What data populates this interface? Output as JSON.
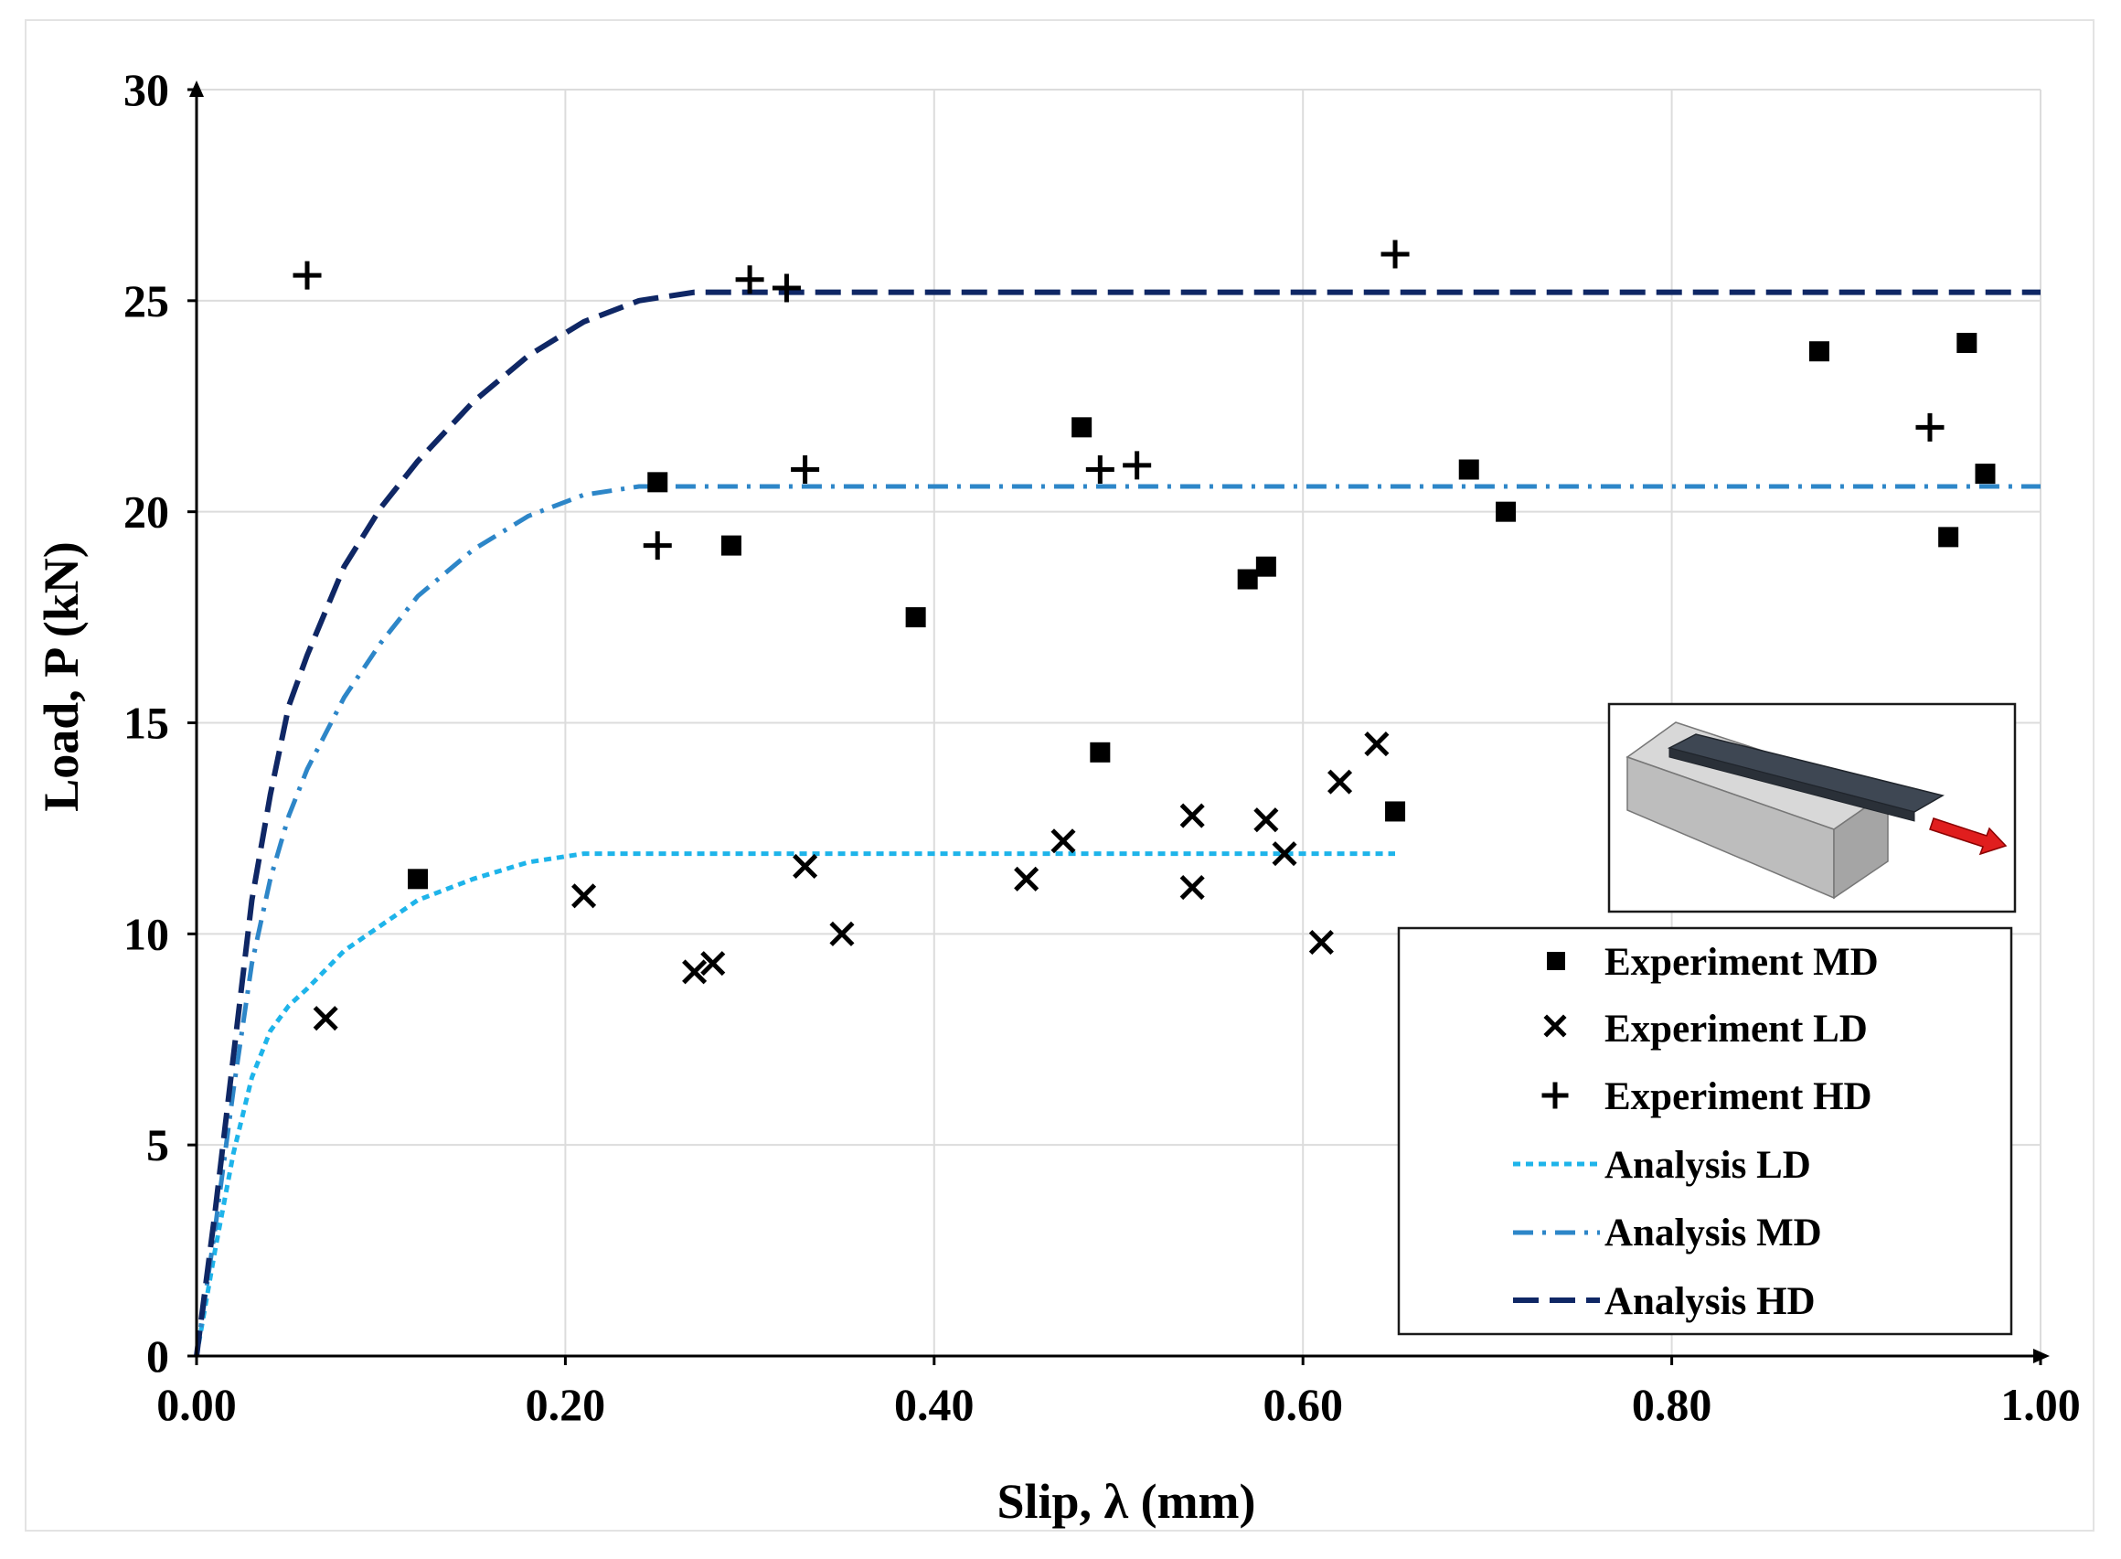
{
  "chart_data": {
    "type": "scatter",
    "xlabel": "Slip, λ (mm)",
    "ylabel": "Load, P (kN)",
    "xlim": [
      0,
      1.0
    ],
    "ylim": [
      0,
      30
    ],
    "xticks": [
      0,
      0.2,
      0.4,
      0.6,
      0.8,
      1.0
    ],
    "xtick_labels": [
      "0.00",
      "0.20",
      "0.40",
      "0.60",
      "0.80",
      "1.00"
    ],
    "yticks": [
      0,
      5,
      10,
      15,
      20,
      25,
      30
    ],
    "ytick_labels": [
      "0",
      "5",
      "10",
      "15",
      "20",
      "25",
      "30"
    ],
    "grid": true,
    "legend_position": "bottom-right",
    "series": [
      {
        "name": "Experiment MD",
        "marker": "square",
        "color": "#000000",
        "points": [
          [
            0.12,
            11.3
          ],
          [
            0.25,
            20.7
          ],
          [
            0.29,
            19.2
          ],
          [
            0.39,
            17.5
          ],
          [
            0.48,
            22.0
          ],
          [
            0.49,
            14.3
          ],
          [
            0.57,
            18.4
          ],
          [
            0.58,
            18.7
          ],
          [
            0.65,
            12.9
          ],
          [
            0.69,
            21.0
          ],
          [
            0.71,
            20.0
          ],
          [
            0.88,
            23.8
          ],
          [
            0.95,
            19.4
          ],
          [
            0.96,
            24.0
          ],
          [
            0.97,
            20.9
          ]
        ]
      },
      {
        "name": "Experiment LD",
        "marker": "x",
        "color": "#000000",
        "points": [
          [
            0.07,
            8.0
          ],
          [
            0.21,
            10.9
          ],
          [
            0.27,
            9.1
          ],
          [
            0.28,
            9.3
          ],
          [
            0.33,
            11.6
          ],
          [
            0.35,
            10.0
          ],
          [
            0.45,
            11.3
          ],
          [
            0.47,
            12.2
          ],
          [
            0.54,
            12.8
          ],
          [
            0.54,
            11.1
          ],
          [
            0.58,
            12.7
          ],
          [
            0.59,
            11.9
          ],
          [
            0.61,
            9.8
          ],
          [
            0.62,
            13.6
          ],
          [
            0.64,
            14.5
          ]
        ]
      },
      {
        "name": "Experiment HD",
        "marker": "plus",
        "color": "#000000",
        "points": [
          [
            0.06,
            25.6
          ],
          [
            0.25,
            19.2
          ],
          [
            0.3,
            25.5
          ],
          [
            0.32,
            25.3
          ],
          [
            0.33,
            21.0
          ],
          [
            0.49,
            21.0
          ],
          [
            0.51,
            21.1
          ],
          [
            0.65,
            26.1
          ],
          [
            0.94,
            22.0
          ]
        ]
      },
      {
        "name": "Analysis LD",
        "style": "dotted",
        "color": "#1eb4ea",
        "points": [
          [
            0,
            0
          ],
          [
            0.01,
            2.5
          ],
          [
            0.02,
            4.8
          ],
          [
            0.03,
            6.6
          ],
          [
            0.04,
            7.7
          ],
          [
            0.05,
            8.3
          ],
          [
            0.06,
            8.7
          ],
          [
            0.08,
            9.6
          ],
          [
            0.1,
            10.2
          ],
          [
            0.12,
            10.8
          ],
          [
            0.15,
            11.3
          ],
          [
            0.18,
            11.7
          ],
          [
            0.21,
            11.9
          ],
          [
            0.25,
            11.9
          ],
          [
            0.65,
            11.9
          ]
        ]
      },
      {
        "name": "Analysis MD",
        "style": "dash-dot",
        "color": "#2d86c8",
        "points": [
          [
            0,
            0
          ],
          [
            0.01,
            3.0
          ],
          [
            0.02,
            6.3
          ],
          [
            0.03,
            9.3
          ],
          [
            0.04,
            11.3
          ],
          [
            0.05,
            12.8
          ],
          [
            0.06,
            13.9
          ],
          [
            0.08,
            15.6
          ],
          [
            0.1,
            16.9
          ],
          [
            0.12,
            18.0
          ],
          [
            0.15,
            19.1
          ],
          [
            0.18,
            19.9
          ],
          [
            0.21,
            20.4
          ],
          [
            0.24,
            20.6
          ],
          [
            0.27,
            20.6
          ],
          [
            1.0,
            20.6
          ]
        ]
      },
      {
        "name": "Analysis HD",
        "style": "dashed",
        "color": "#0f2765",
        "points": [
          [
            0,
            0
          ],
          [
            0.01,
            3.4
          ],
          [
            0.02,
            7.1
          ],
          [
            0.03,
            10.8
          ],
          [
            0.04,
            13.3
          ],
          [
            0.05,
            15.4
          ],
          [
            0.06,
            16.6
          ],
          [
            0.08,
            18.7
          ],
          [
            0.1,
            20.1
          ],
          [
            0.12,
            21.2
          ],
          [
            0.15,
            22.6
          ],
          [
            0.18,
            23.7
          ],
          [
            0.21,
            24.5
          ],
          [
            0.24,
            25.0
          ],
          [
            0.27,
            25.2
          ],
          [
            1.0,
            25.2
          ]
        ]
      }
    ]
  }
}
